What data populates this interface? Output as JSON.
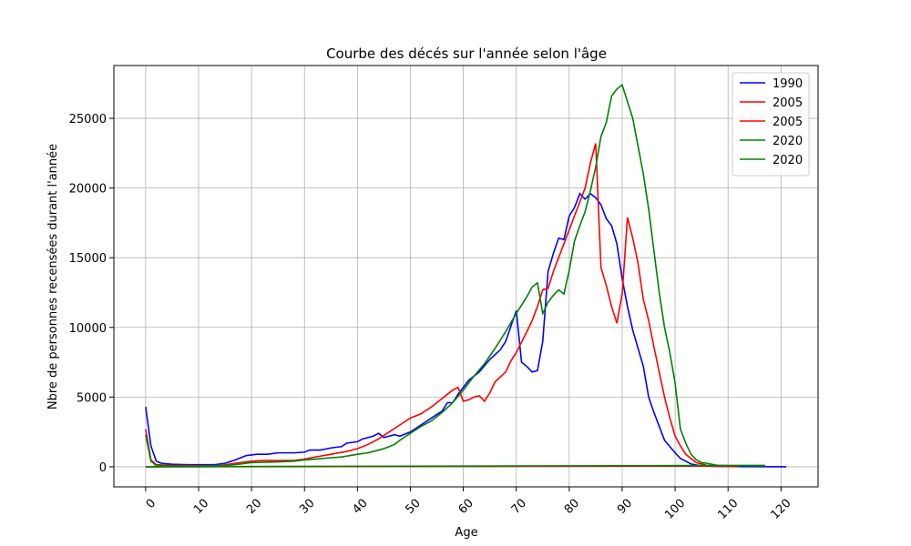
{
  "chart_data": {
    "type": "line",
    "title": "Courbe des décés sur l'année selon l'âge",
    "xlabel": "Age",
    "ylabel": "Nbre de personnes recensées durant l'année",
    "xlim": [
      -6,
      127
    ],
    "ylim": [
      -1440,
      28790
    ],
    "xticks": [
      0,
      10,
      20,
      30,
      40,
      50,
      60,
      70,
      80,
      90,
      100,
      110,
      120
    ],
    "yticks": [
      0,
      5000,
      10000,
      15000,
      20000,
      25000
    ],
    "grid": true,
    "legend": "upper right",
    "series": [
      {
        "name": "1990",
        "color": "#0000ff",
        "x": [
          0,
          1,
          2,
          3,
          5,
          8,
          10,
          13,
          15,
          17,
          19,
          21,
          23,
          25,
          28,
          30,
          31,
          33,
          35,
          37,
          38,
          40,
          41,
          43,
          44,
          45,
          47,
          48,
          50,
          52,
          54,
          56,
          57,
          58,
          59,
          61,
          63,
          65,
          67,
          68,
          70,
          71,
          72,
          73,
          74,
          75,
          76,
          77,
          78,
          79,
          80,
          81,
          82,
          83,
          84,
          85,
          86,
          87,
          88,
          89,
          90,
          91,
          92,
          94,
          95,
          96,
          97,
          98,
          100,
          101,
          103,
          105,
          110,
          121
        ],
        "values": [
          4300,
          1500,
          400,
          250,
          180,
          150,
          150,
          150,
          250,
          500,
          800,
          900,
          900,
          1000,
          1000,
          1050,
          1200,
          1200,
          1350,
          1450,
          1700,
          1800,
          2000,
          2200,
          2400,
          2100,
          2300,
          2200,
          2500,
          3000,
          3500,
          4000,
          4600,
          4600,
          5200,
          6200,
          6800,
          7700,
          8400,
          9000,
          11200,
          7500,
          7200,
          6800,
          6900,
          9000,
          14000,
          15300,
          16400,
          16300,
          18000,
          18600,
          19600,
          19200,
          19600,
          19300,
          18800,
          17800,
          17300,
          16000,
          13500,
          11500,
          9800,
          7200,
          5000,
          3900,
          2900,
          1900,
          1000,
          600,
          200,
          60,
          20,
          0
        ]
      },
      {
        "name": "2005",
        "color": "#ff0000",
        "x": [
          0,
          1,
          2,
          5,
          10,
          14,
          16,
          18,
          20,
          22,
          25,
          28,
          30,
          32,
          35,
          38,
          40,
          42,
          44,
          46,
          48,
          50,
          52,
          54,
          56,
          58,
          59,
          60,
          61,
          62,
          63,
          64,
          65,
          66,
          68,
          69,
          70,
          72,
          73,
          74,
          75,
          76,
          77,
          78,
          80,
          81,
          82,
          83,
          84,
          85,
          86,
          87,
          88,
          89,
          90,
          91,
          92,
          93,
          94,
          95,
          96,
          97,
          98,
          99,
          100,
          101,
          102,
          104,
          106,
          108,
          112
        ],
        "values": [
          2700,
          500,
          150,
          100,
          80,
          80,
          200,
          300,
          400,
          450,
          450,
          450,
          550,
          700,
          900,
          1100,
          1300,
          1600,
          2000,
          2500,
          3000,
          3500,
          3800,
          4300,
          4900,
          5500,
          5700,
          4700,
          4800,
          5000,
          5100,
          4700,
          5300,
          6100,
          6800,
          7600,
          8200,
          9700,
          10500,
          11500,
          12700,
          12800,
          14000,
          15000,
          17000,
          18000,
          19000,
          20000,
          21800,
          23200,
          14300,
          13000,
          11500,
          10300,
          12400,
          17900,
          16400,
          14600,
          12000,
          10500,
          8600,
          6800,
          5000,
          3500,
          2200,
          1500,
          900,
          300,
          100,
          40,
          10
        ]
      },
      {
        "name": "2005",
        "color": "#ff0000",
        "x": [
          0,
          112
        ],
        "values": [
          0,
          50
        ]
      },
      {
        "name": "2020",
        "color": "#008000",
        "x": [
          0,
          1,
          2,
          5,
          10,
          15,
          18,
          20,
          25,
          28,
          30,
          32,
          35,
          37,
          40,
          42,
          44,
          45,
          47,
          48,
          50,
          52,
          54,
          56,
          58,
          60,
          62,
          64,
          66,
          68,
          70,
          72,
          73,
          74,
          75,
          76,
          77,
          78,
          79,
          80,
          81,
          82,
          83,
          84,
          85,
          86,
          87,
          88,
          89,
          90,
          91,
          92,
          93,
          94,
          95,
          96,
          97,
          98,
          99,
          100,
          101,
          102,
          103,
          104,
          105,
          106,
          108,
          110,
          117
        ],
        "values": [
          2300,
          400,
          100,
          60,
          50,
          80,
          200,
          300,
          350,
          400,
          500,
          550,
          650,
          700,
          900,
          1000,
          1200,
          1300,
          1600,
          1900,
          2400,
          2900,
          3300,
          3900,
          4600,
          5500,
          6500,
          7400,
          8500,
          9700,
          11000,
          12200,
          12900,
          13200,
          11000,
          11800,
          12300,
          12700,
          12400,
          14100,
          16200,
          17300,
          18300,
          19800,
          21500,
          23700,
          24700,
          26600,
          27100,
          27400,
          26200,
          25000,
          23000,
          21000,
          18500,
          15500,
          12500,
          10000,
          8200,
          6000,
          2700,
          1700,
          900,
          500,
          300,
          250,
          100,
          80,
          70
        ]
      },
      {
        "name": "2020",
        "color": "#008000",
        "x": [
          0,
          117
        ],
        "values": [
          0,
          100
        ]
      }
    ]
  }
}
